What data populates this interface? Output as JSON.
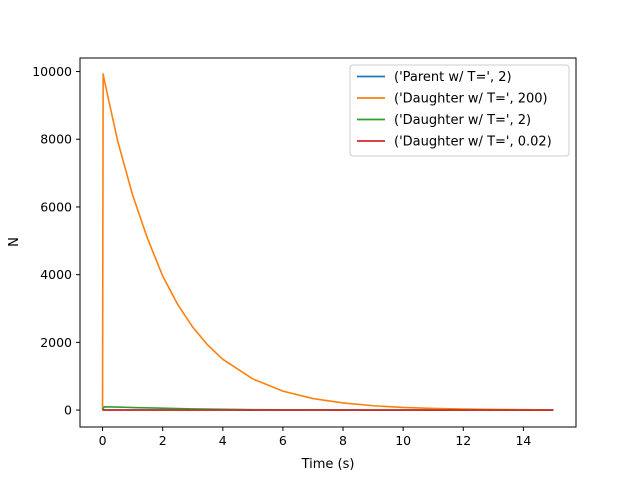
{
  "chart_data": {
    "type": "line",
    "xlabel": "Time (s)",
    "ylabel": "N",
    "xlim": [
      -0.75,
      15.75
    ],
    "ylim": [
      -500,
      10400
    ],
    "xticks": [
      0,
      2,
      4,
      6,
      8,
      10,
      12,
      14
    ],
    "yticks": [
      0,
      2000,
      4000,
      6000,
      8000,
      10000
    ],
    "xtick_labels": [
      "0",
      "2",
      "4",
      "6",
      "8",
      "10",
      "12",
      "14"
    ],
    "ytick_labels": [
      "0",
      "2000",
      "4000",
      "6000",
      "8000",
      "10000"
    ],
    "grid": false,
    "legend_position": "top-right",
    "series": [
      {
        "name": "('Parent w/ T=', 2)",
        "color": "#1f77b4",
        "x": [
          0,
          0.001,
          1,
          2,
          4,
          6,
          8,
          10,
          12,
          15
        ],
        "y": [
          0,
          5,
          4,
          3,
          2,
          1,
          0,
          0,
          0,
          0
        ]
      },
      {
        "name": "('Daughter w/ T=', 200)",
        "color": "#ff7f0e",
        "x": [
          0,
          0.02,
          0.05,
          0.5,
          1,
          1.5,
          2,
          2.5,
          3,
          3.5,
          4,
          5,
          6,
          7,
          8,
          9,
          10,
          11,
          12,
          13,
          14,
          15
        ],
        "y": [
          0,
          9930,
          9780,
          7960,
          6350,
          5060,
          3960,
          3120,
          2450,
          1920,
          1500,
          920,
          560,
          340,
          210,
          128,
          78,
          48,
          29,
          18,
          11,
          6
        ]
      },
      {
        "name": "('Daughter w/ T=', 2)",
        "color": "#2ca02c",
        "x": [
          0,
          0.05,
          0.5,
          1,
          2,
          3,
          4,
          5,
          6,
          8,
          10,
          12,
          15
        ],
        "y": [
          0,
          95,
          90,
          75,
          55,
          35,
          22,
          13,
          8,
          3,
          1,
          0,
          0
        ]
      },
      {
        "name": "('Daughter w/ T=', 0.02)",
        "color": "#d62728",
        "x": [
          0,
          0.05,
          1,
          2,
          4,
          6,
          8,
          10,
          12,
          15
        ],
        "y": [
          0,
          1,
          1,
          1,
          0,
          0,
          0,
          0,
          0,
          0
        ]
      }
    ]
  }
}
